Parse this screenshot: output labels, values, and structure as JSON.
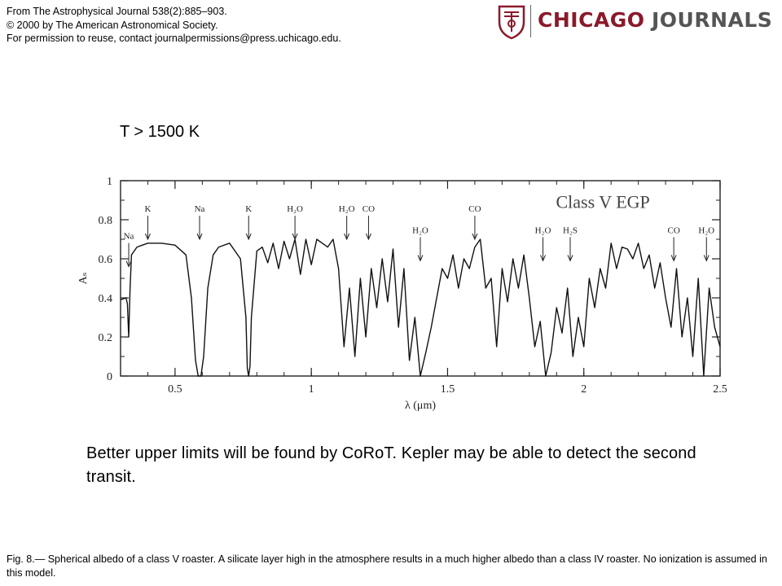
{
  "header": {
    "line1": "From The Astrophysical Journal 538(2):885–903.",
    "line2": "© 2000 by The American Astronomical Society.",
    "line3": "For permission to reuse, contact journalpermissions@press.uchicago.edu."
  },
  "logo": {
    "word1": "CHICAGO",
    "word2": "JOURNALS"
  },
  "temp_label": "T > 1500 K",
  "body_text": "Better upper limits will be found by CoRoT. Kepler may be able to detect the second transit.",
  "caption": "Fig. 8.— Spherical albedo of a class V roaster. A silicate layer high in the atmosphere results in a much higher albedo than a class IV roaster. No ionization is assumed in this model.",
  "chart_data": {
    "type": "line",
    "title": "Class V EGP",
    "xlabel": "λ (μm)",
    "ylabel": "Aₛ",
    "xlim": [
      0.3,
      2.5
    ],
    "ylim": [
      0,
      1
    ],
    "xticks": [
      "0.5",
      "1",
      "1.5",
      "2",
      "2.5"
    ],
    "yticks": [
      "0",
      "0.2",
      "0.4",
      "0.6",
      "0.8",
      "1"
    ],
    "annotations": [
      {
        "label": "Na",
        "x": 0.33,
        "y": 0.56
      },
      {
        "label": "K",
        "x": 0.4,
        "y": 0.7
      },
      {
        "label": "Na",
        "x": 0.59,
        "y": 0.7
      },
      {
        "label": "K",
        "x": 0.77,
        "y": 0.7
      },
      {
        "label": "H₂O",
        "x": 0.94,
        "y": 0.7
      },
      {
        "label": "H₂O",
        "x": 1.13,
        "y": 0.7
      },
      {
        "label": "CO",
        "x": 1.21,
        "y": 0.7
      },
      {
        "label": "H₂O",
        "x": 1.4,
        "y": 0.59
      },
      {
        "label": "CO",
        "x": 1.6,
        "y": 0.7
      },
      {
        "label": "H₂O",
        "x": 1.85,
        "y": 0.59
      },
      {
        "label": "H₂S",
        "x": 1.95,
        "y": 0.59
      },
      {
        "label": "CO",
        "x": 2.33,
        "y": 0.59
      },
      {
        "label": "H₂O",
        "x": 2.45,
        "y": 0.59
      }
    ],
    "series": [
      {
        "x": [
          0.3,
          0.32,
          0.325,
          0.33,
          0.335,
          0.34,
          0.36,
          0.38,
          0.4,
          0.42,
          0.45,
          0.5,
          0.54,
          0.56,
          0.575,
          0.585,
          0.595,
          0.605,
          0.62,
          0.64,
          0.66,
          0.7,
          0.74,
          0.76,
          0.765,
          0.77,
          0.775,
          0.78,
          0.8,
          0.82,
          0.84,
          0.86,
          0.88,
          0.9,
          0.92,
          0.94,
          0.96,
          0.98,
          1.0,
          1.02,
          1.04,
          1.06,
          1.08,
          1.1,
          1.12,
          1.14,
          1.16,
          1.18,
          1.2,
          1.22,
          1.24,
          1.26,
          1.28,
          1.3,
          1.32,
          1.34,
          1.36,
          1.38,
          1.4,
          1.42,
          1.44,
          1.46,
          1.48,
          1.5,
          1.52,
          1.54,
          1.56,
          1.58,
          1.6,
          1.62,
          1.64,
          1.66,
          1.68,
          1.7,
          1.72,
          1.74,
          1.76,
          1.78,
          1.8,
          1.82,
          1.84,
          1.86,
          1.88,
          1.9,
          1.92,
          1.94,
          1.96,
          1.98,
          2.0,
          2.02,
          2.04,
          2.06,
          2.08,
          2.1,
          2.12,
          2.14,
          2.16,
          2.18,
          2.2,
          2.22,
          2.24,
          2.26,
          2.28,
          2.3,
          2.32,
          2.34,
          2.36,
          2.38,
          2.4,
          2.42,
          2.44,
          2.46,
          2.48,
          2.5
        ],
        "y": [
          0.39,
          0.4,
          0.37,
          0.2,
          0.45,
          0.62,
          0.66,
          0.67,
          0.68,
          0.68,
          0.68,
          0.67,
          0.62,
          0.4,
          0.08,
          0.0,
          0.0,
          0.1,
          0.45,
          0.62,
          0.66,
          0.68,
          0.6,
          0.3,
          0.04,
          0.0,
          0.05,
          0.3,
          0.64,
          0.66,
          0.58,
          0.68,
          0.55,
          0.69,
          0.6,
          0.7,
          0.52,
          0.7,
          0.57,
          0.7,
          0.68,
          0.66,
          0.7,
          0.55,
          0.15,
          0.45,
          0.1,
          0.5,
          0.2,
          0.55,
          0.35,
          0.6,
          0.38,
          0.65,
          0.25,
          0.55,
          0.08,
          0.3,
          0.0,
          0.12,
          0.25,
          0.4,
          0.55,
          0.5,
          0.62,
          0.45,
          0.6,
          0.55,
          0.66,
          0.7,
          0.45,
          0.5,
          0.15,
          0.55,
          0.38,
          0.6,
          0.45,
          0.62,
          0.4,
          0.15,
          0.28,
          0.0,
          0.12,
          0.35,
          0.22,
          0.45,
          0.1,
          0.3,
          0.15,
          0.5,
          0.35,
          0.55,
          0.45,
          0.68,
          0.55,
          0.66,
          0.65,
          0.6,
          0.68,
          0.55,
          0.62,
          0.45,
          0.58,
          0.4,
          0.25,
          0.55,
          0.2,
          0.4,
          0.1,
          0.5,
          0.0,
          0.45,
          0.25,
          0.15
        ]
      }
    ]
  }
}
